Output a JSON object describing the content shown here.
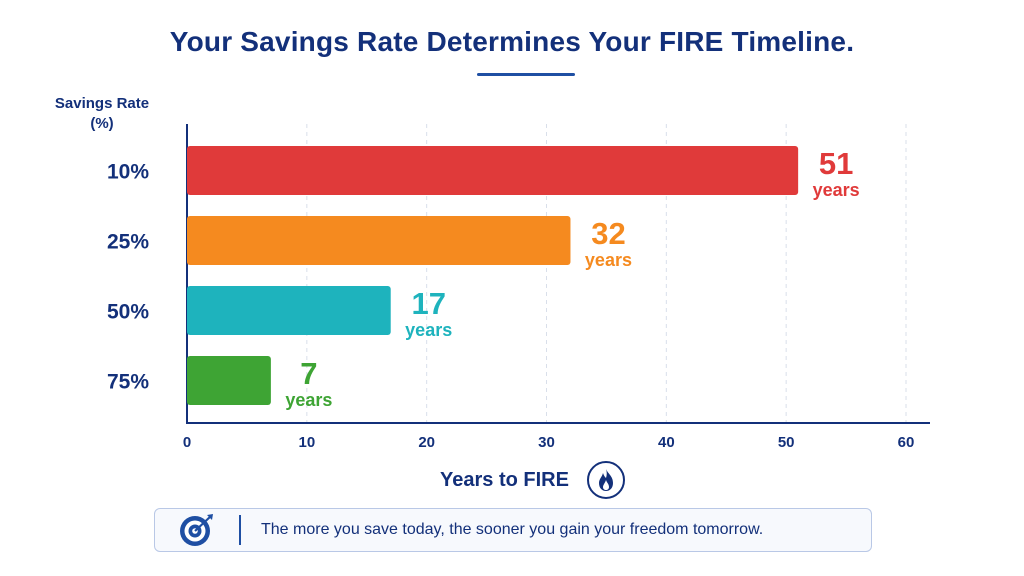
{
  "chart_data": {
    "type": "bar",
    "orientation": "horizontal",
    "title": "Your Savings Rate Determines Your FIRE Timeline.",
    "xlabel": "Years to FIRE",
    "ylabel": "Savings Rate (%)",
    "categories": [
      "10%",
      "25%",
      "50%",
      "75%"
    ],
    "values": [
      51,
      32,
      17,
      7
    ],
    "data_labels": [
      {
        "value": "51",
        "unit": "years"
      },
      {
        "value": "32",
        "unit": "years"
      },
      {
        "value": "17",
        "unit": "years"
      },
      {
        "value": "7",
        "unit": "years"
      }
    ],
    "bar_colors": [
      "#e03a3a",
      "#f58a1f",
      "#1eb3bd",
      "#3ea434"
    ],
    "xlim": [
      0,
      60
    ],
    "xticks": [
      "0",
      "10",
      "20",
      "30",
      "40",
      "50",
      "60"
    ],
    "grid": "vertical-dashed",
    "legend": "none"
  },
  "footer": {
    "text": "The more you save today, the sooner you gain your freedom tomorrow.",
    "icon": "target-icon"
  },
  "xlabel_icon": "flame-icon"
}
